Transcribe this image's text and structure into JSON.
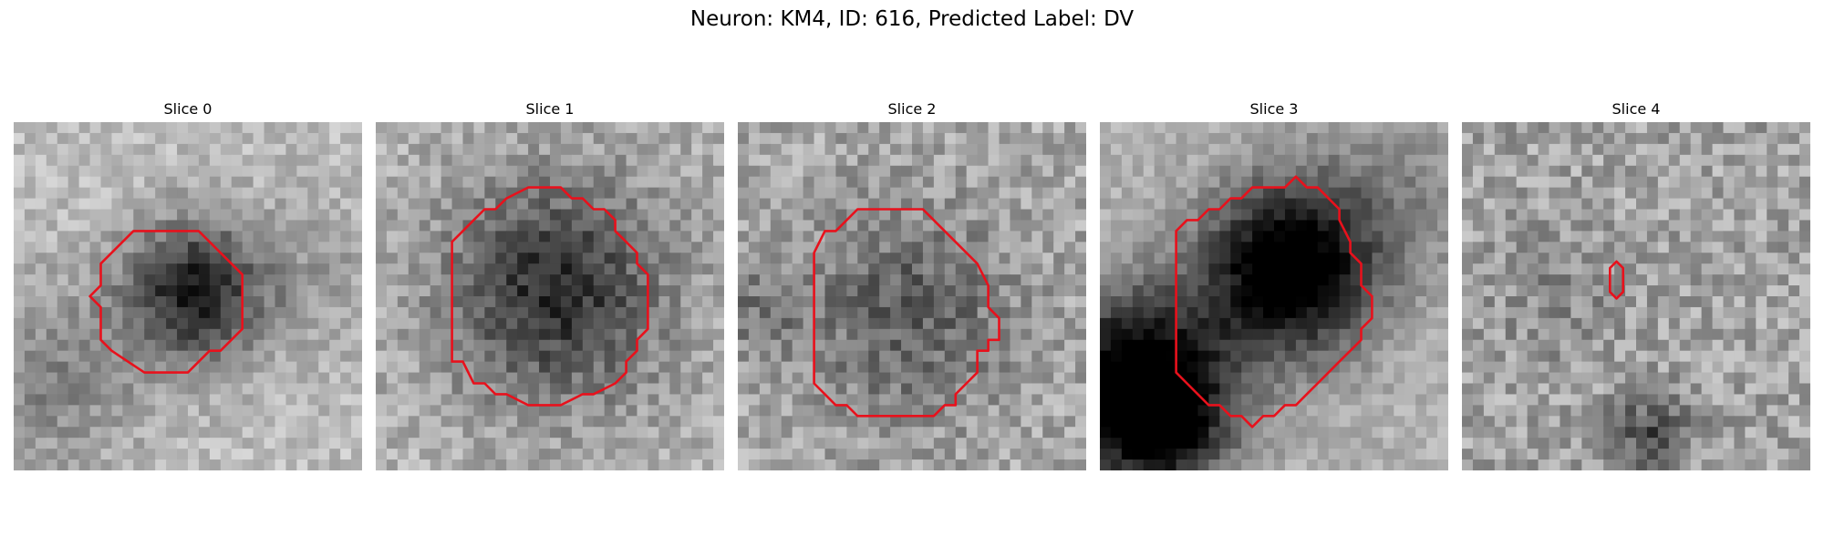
{
  "figure": {
    "title": "Neuron: KM4, ID: 616, Predicted Label: DV"
  },
  "colors": {
    "contour": "#e8111c",
    "background": "#ffffff"
  },
  "panels": [
    {
      "title": "Slice 0"
    },
    {
      "title": "Slice 1"
    },
    {
      "title": "Slice 2"
    },
    {
      "title": "Slice 3"
    },
    {
      "title": "Slice 4"
    }
  ]
}
